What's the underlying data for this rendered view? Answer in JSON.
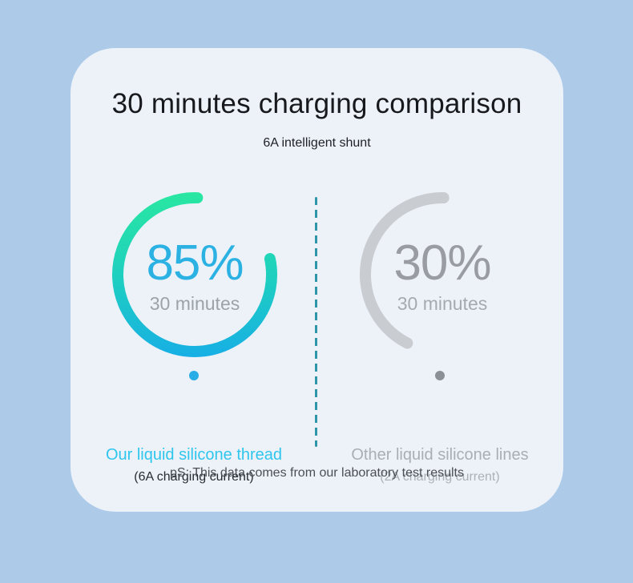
{
  "page": {
    "background_color": "#adcbe9",
    "card_color": "#edf2f9"
  },
  "header": {
    "title": "30 minutes charging comparison",
    "subtitle": "6A intelligent shunt",
    "title_color": "#17191c",
    "subtitle_color": "#1e2125"
  },
  "chart_data": {
    "type": "radial-progress-comparison",
    "title": "30 minutes charging comparison",
    "subtitle": "6A intelligent shunt",
    "divider_color": "#2e96a8",
    "series": [
      {
        "name": "Our liquid silicone thread",
        "detail": "(6A charging current)",
        "percent": 85,
        "percent_label": "85%",
        "time_label": "30 minutes",
        "arc": {
          "start_deg": 78,
          "sweep_deg": 284
        },
        "ring_gradient": [
          "#29e7a1",
          "#1ecfc0",
          "#17afe5"
        ],
        "percent_color": "#2bb2e3",
        "time_color": "#9ca2a9",
        "name_color": "#2fc6ee",
        "detail_color": "#272c33",
        "dot_color": "#29ade7"
      },
      {
        "name": "Other liquid silicone lines",
        "detail": "(2A charging current)",
        "percent": 30,
        "percent_label": "30%",
        "time_label": "30 minutes",
        "arc": {
          "start_deg": 207,
          "sweep_deg": 154
        },
        "ring_color": "#c9cdd2",
        "percent_color": "#999da3",
        "time_color": "#a5aab1",
        "name_color": "#a9aeb5",
        "detail_color": "#acb1b8",
        "dot_color": "#8a9096"
      }
    ],
    "footnote": "pS: This data comes from our laboratory test results",
    "footnote_color": "#4b4f55"
  }
}
